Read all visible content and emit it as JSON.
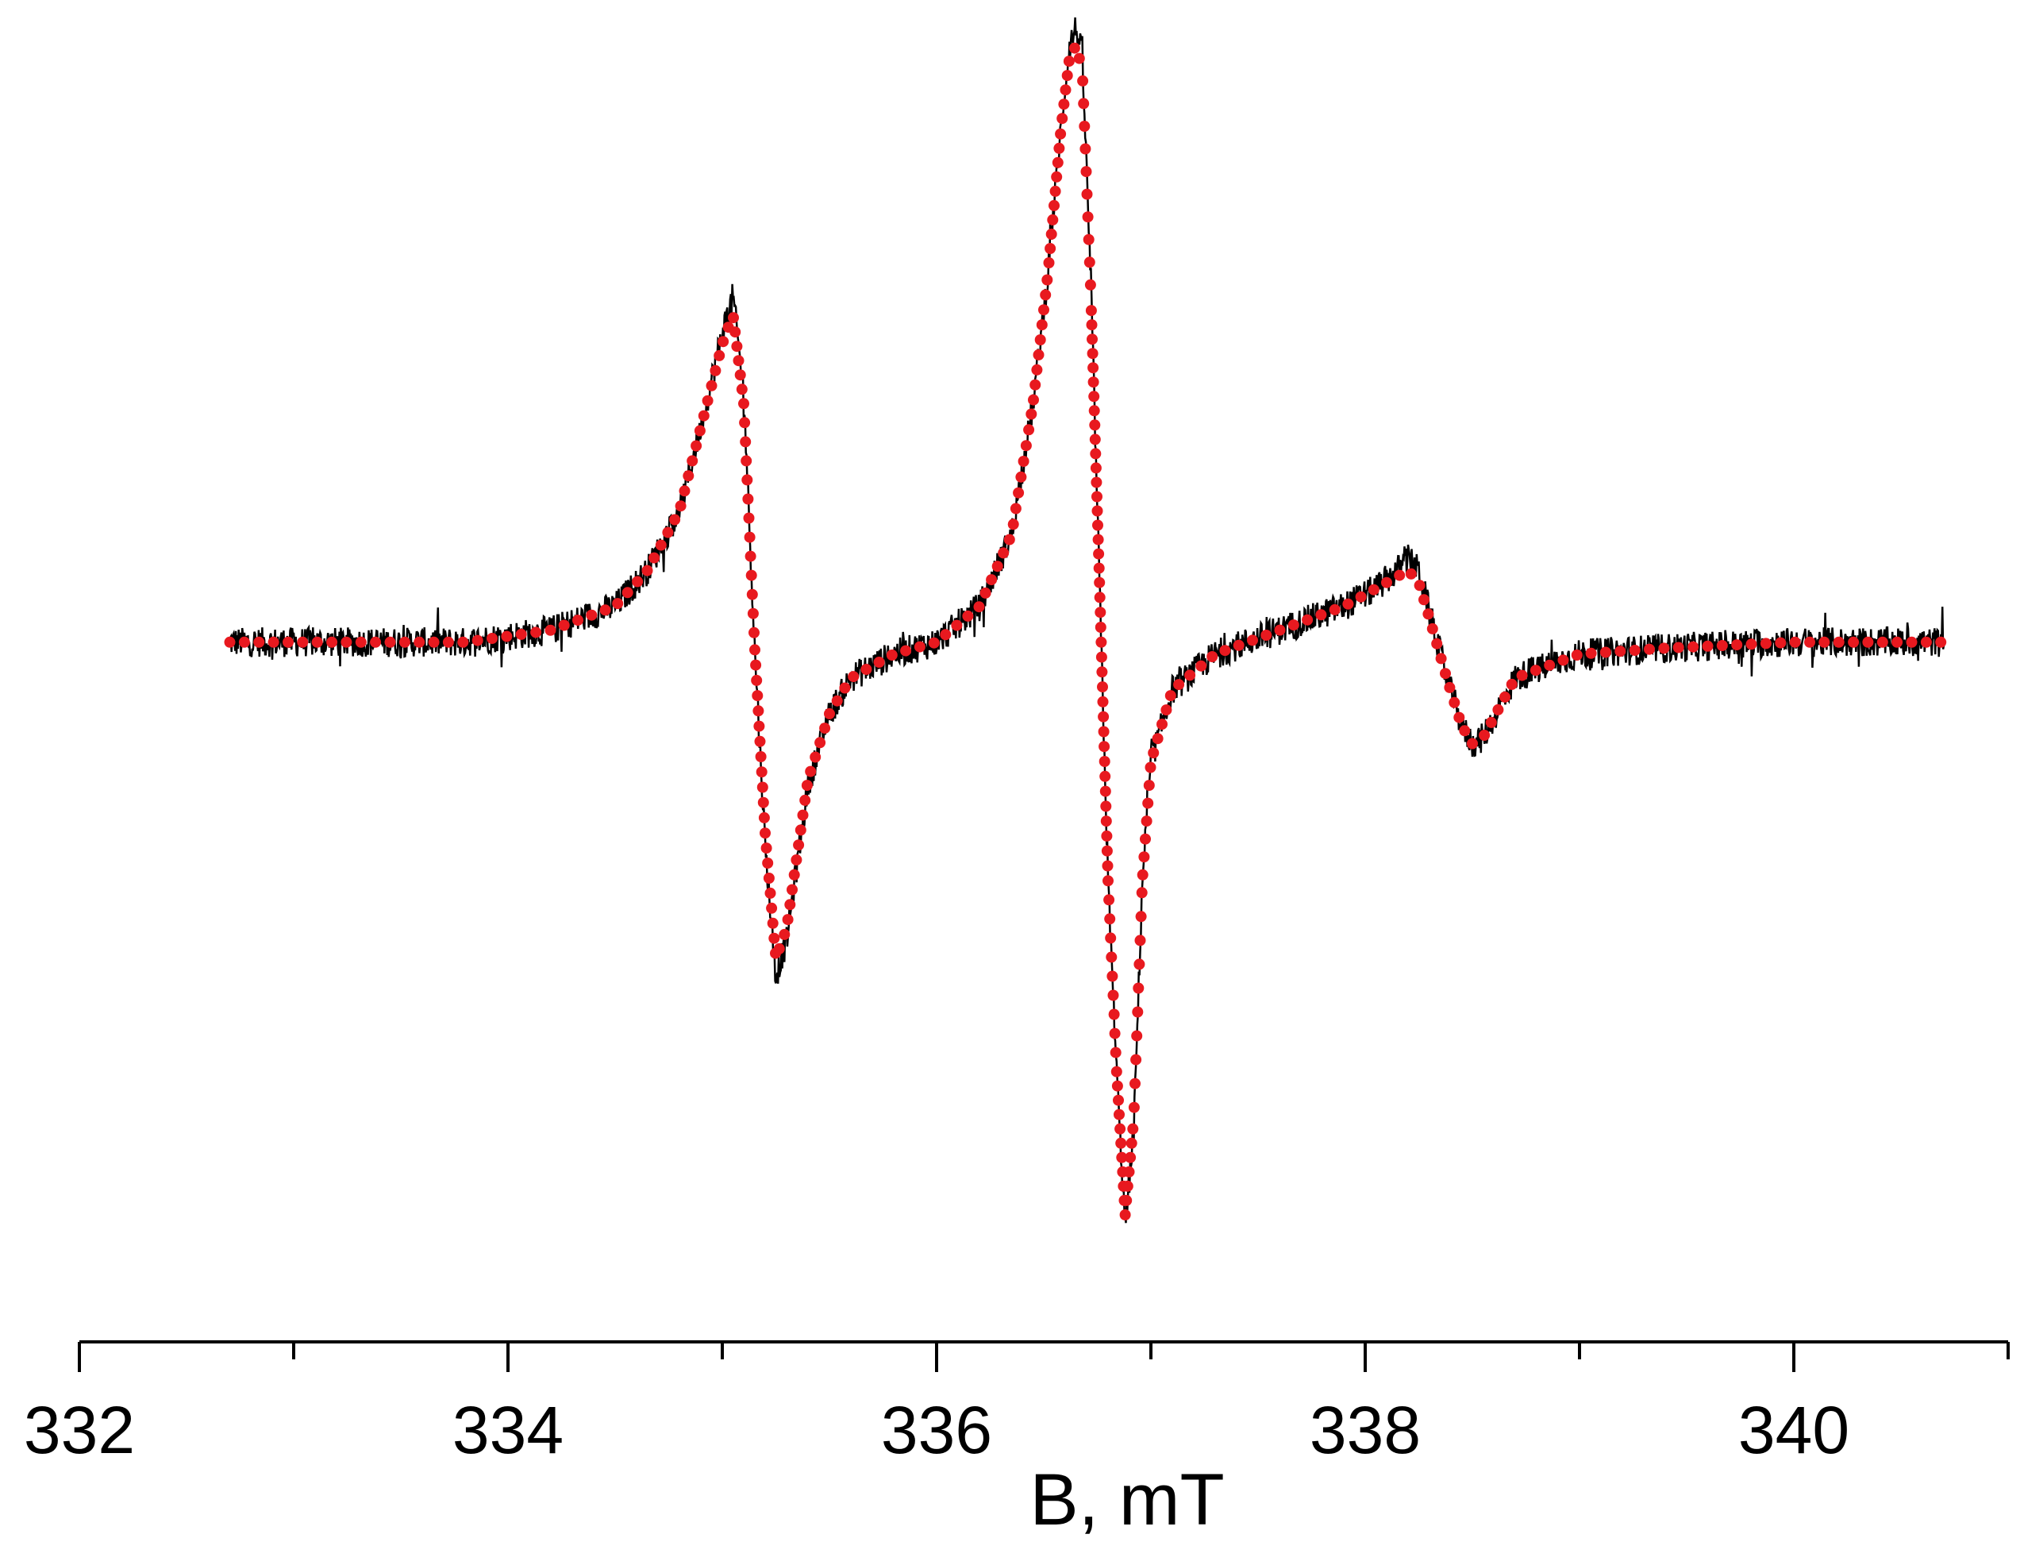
{
  "chart_data": {
    "type": "line",
    "title": "",
    "xlabel": "B, mT",
    "ylabel": "",
    "xlim": [
      332,
      341
    ],
    "ylim": [
      -1.0,
      1.05
    ],
    "x_ticks_major": [
      332,
      334,
      336,
      338,
      340
    ],
    "x_tick_labels": [
      "332",
      "334",
      "336",
      "338",
      "340"
    ],
    "x_ticks_minor": [
      333,
      335,
      337,
      339,
      341
    ],
    "y_axis_visible": false,
    "grid": false,
    "legend": "none",
    "x_range_data": [
      332.7,
      340.7
    ],
    "series": [
      {
        "style": "noisy-line",
        "color": "#000000",
        "x": [
          332.7,
          333.2,
          333.8,
          334.2,
          334.5,
          334.65,
          334.8,
          334.9,
          335.0,
          335.05,
          335.1,
          335.15,
          335.2,
          335.25,
          335.3,
          335.4,
          335.5,
          335.6,
          335.8,
          336.0,
          336.2,
          336.35,
          336.45,
          336.52,
          336.58,
          336.62,
          336.65,
          336.68,
          336.72,
          336.76,
          336.8,
          336.84,
          336.88,
          336.92,
          336.96,
          337.0,
          337.1,
          337.3,
          337.6,
          337.9,
          338.05,
          338.15,
          338.2,
          338.25,
          338.3,
          338.38,
          338.45,
          338.5,
          338.55,
          338.7,
          339.0,
          339.4,
          340.0,
          340.7
        ],
        "y": [
          0.0,
          0.0,
          0.0,
          0.02,
          0.06,
          0.12,
          0.22,
          0.36,
          0.52,
          0.58,
          0.42,
          0.0,
          -0.34,
          -0.56,
          -0.5,
          -0.24,
          -0.12,
          -0.06,
          -0.02,
          0.0,
          0.06,
          0.18,
          0.4,
          0.62,
          0.86,
          1.0,
          1.03,
          0.98,
          0.6,
          0.1,
          -0.4,
          -0.72,
          -0.98,
          -0.82,
          -0.4,
          -0.2,
          -0.08,
          -0.02,
          0.02,
          0.06,
          0.09,
          0.12,
          0.14,
          0.12,
          0.05,
          -0.06,
          -0.14,
          -0.17,
          -0.16,
          -0.06,
          -0.02,
          -0.01,
          0.0,
          0.0
        ]
      },
      {
        "style": "dotted-fit",
        "color": "#e8191f",
        "x": [
          332.7,
          333.2,
          333.8,
          334.2,
          334.5,
          334.65,
          334.8,
          334.9,
          335.0,
          335.05,
          335.1,
          335.15,
          335.2,
          335.25,
          335.3,
          335.4,
          335.5,
          335.6,
          335.8,
          336.0,
          336.2,
          336.35,
          336.45,
          336.52,
          336.58,
          336.62,
          336.65,
          336.68,
          336.72,
          336.76,
          336.8,
          336.84,
          336.88,
          336.92,
          336.96,
          337.0,
          337.1,
          337.3,
          337.6,
          337.9,
          338.05,
          338.15,
          338.2,
          338.25,
          338.3,
          338.38,
          338.45,
          338.5,
          338.55,
          338.7,
          339.0,
          339.4,
          340.0,
          340.7
        ],
        "y": [
          0.0,
          0.0,
          0.0,
          0.02,
          0.06,
          0.12,
          0.22,
          0.36,
          0.5,
          0.55,
          0.4,
          0.0,
          -0.32,
          -0.53,
          -0.48,
          -0.23,
          -0.12,
          -0.06,
          -0.02,
          0.0,
          0.06,
          0.18,
          0.4,
          0.62,
          0.86,
          0.98,
          1.0,
          0.96,
          0.58,
          0.1,
          -0.4,
          -0.72,
          -0.96,
          -0.8,
          -0.4,
          -0.2,
          -0.08,
          -0.02,
          0.02,
          0.06,
          0.09,
          0.11,
          0.12,
          0.1,
          0.04,
          -0.06,
          -0.14,
          -0.17,
          -0.16,
          -0.06,
          -0.02,
          -0.01,
          0.0,
          0.0
        ]
      }
    ]
  }
}
